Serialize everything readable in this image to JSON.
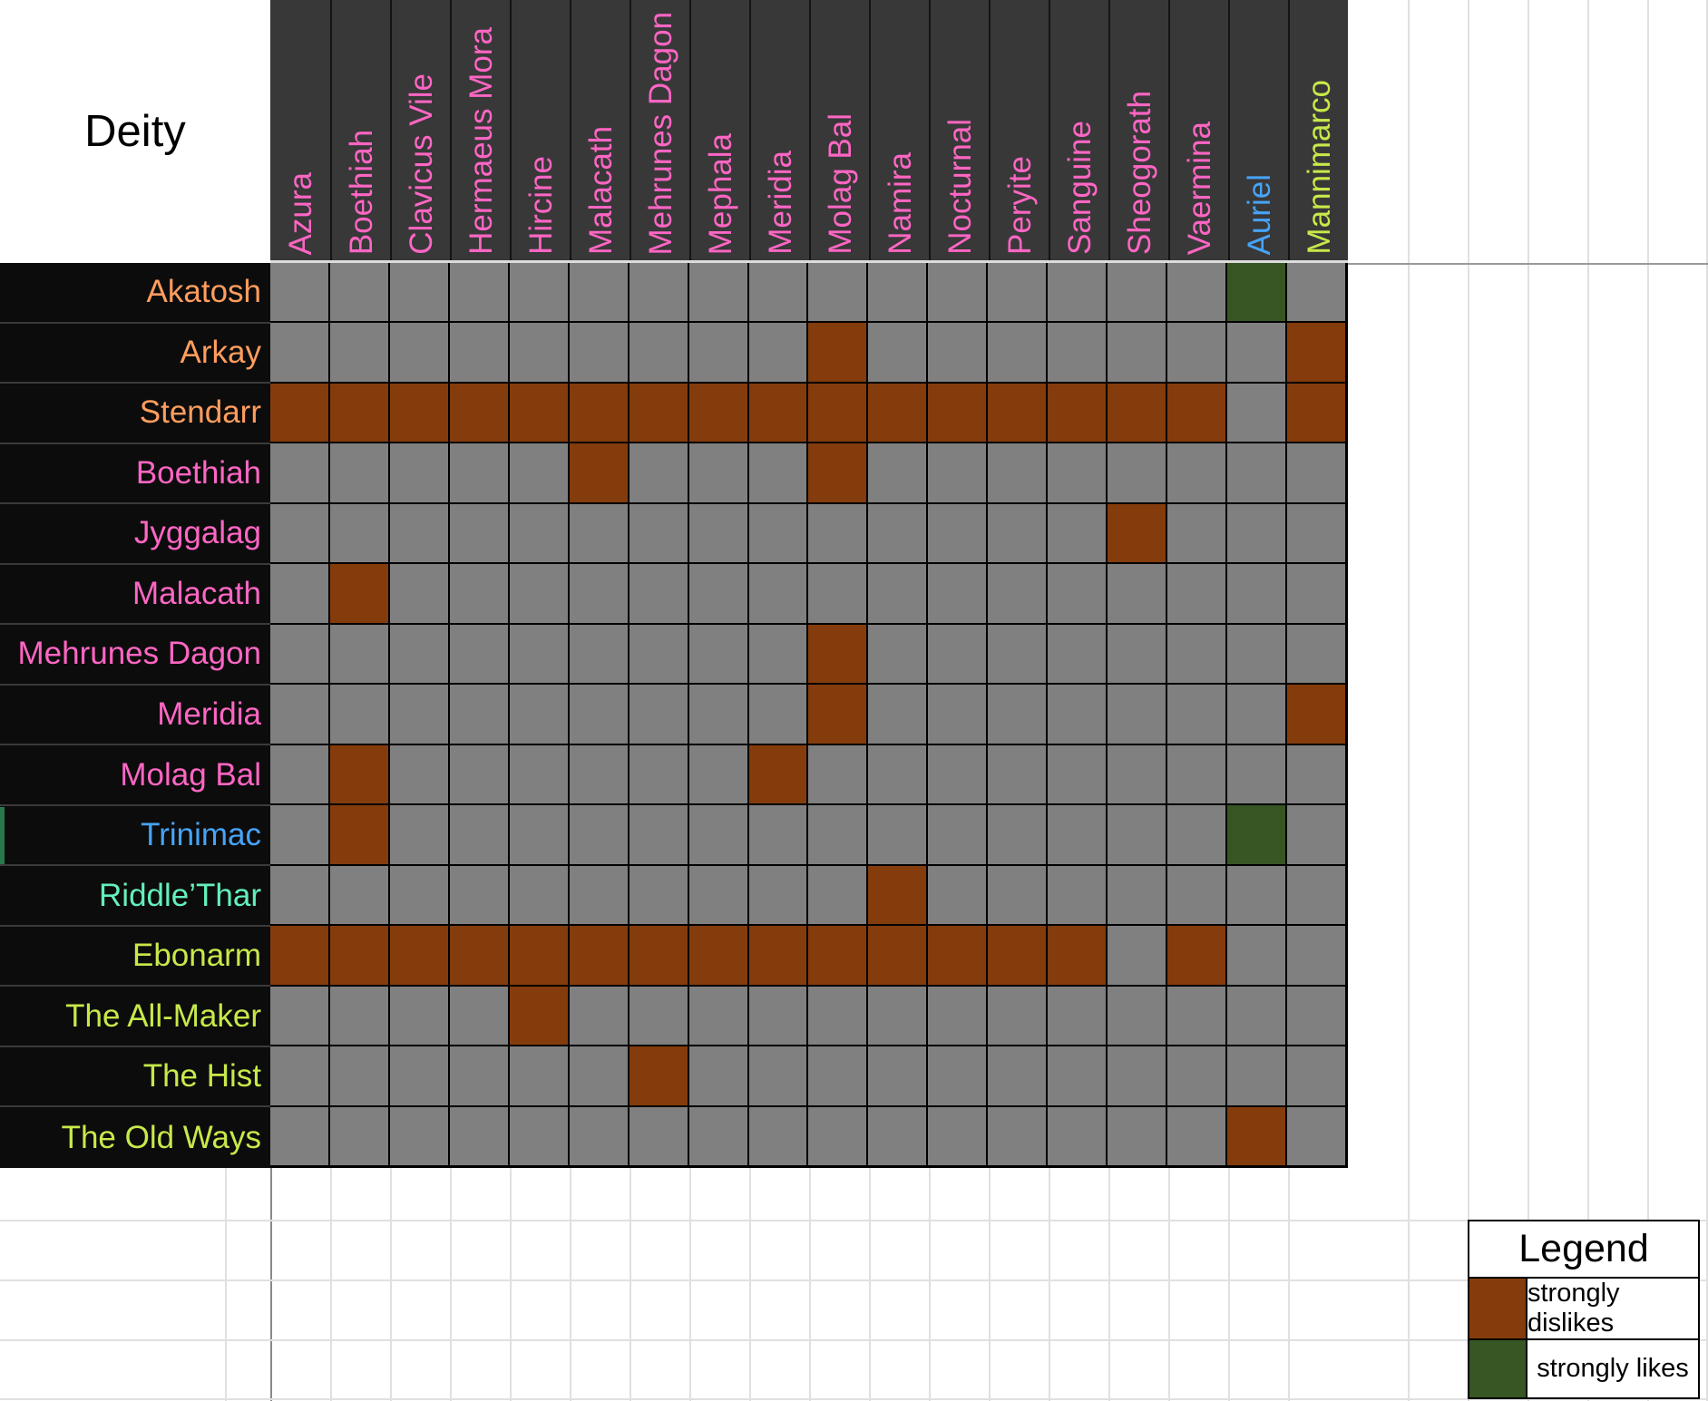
{
  "page_title": "Deity",
  "colors": {
    "cell_neutral": "#808080",
    "cell_dislike": "#843c0c",
    "cell_like": "#375623",
    "header_band_bg": "#383838",
    "row_label_bg": "#0c0c0c",
    "grid_line": "#000000",
    "sheet_gridline": "#e0e0e0",
    "text_pink": "#ff66c4",
    "text_orange": "#ff9d5f",
    "text_blue": "#47a3f8",
    "text_mint": "#63f0bb",
    "text_yellowgreen": "#c7e94a"
  },
  "chart_data": {
    "type": "heatmap",
    "title": "Deity",
    "columns": [
      {
        "label": "Azura",
        "color": "#ff66c4"
      },
      {
        "label": "Boethiah",
        "color": "#ff66c4"
      },
      {
        "label": "Clavicus Vile",
        "color": "#ff66c4"
      },
      {
        "label": "Hermaeus Mora",
        "color": "#ff66c4"
      },
      {
        "label": "Hircine",
        "color": "#ff66c4"
      },
      {
        "label": "Malacath",
        "color": "#ff66c4"
      },
      {
        "label": "Mehrunes Dagon",
        "color": "#ff66c4"
      },
      {
        "label": "Mephala",
        "color": "#ff66c4"
      },
      {
        "label": "Meridia",
        "color": "#ff66c4"
      },
      {
        "label": "Molag Bal",
        "color": "#ff66c4"
      },
      {
        "label": "Namira",
        "color": "#ff66c4"
      },
      {
        "label": "Nocturnal",
        "color": "#ff66c4"
      },
      {
        "label": "Peryite",
        "color": "#ff66c4"
      },
      {
        "label": "Sanguine",
        "color": "#ff66c4"
      },
      {
        "label": "Sheogorath",
        "color": "#ff66c4"
      },
      {
        "label": "Vaermina",
        "color": "#ff66c4"
      },
      {
        "label": "Auriel",
        "color": "#47a3f8"
      },
      {
        "label": "Mannimarco",
        "color": "#c7e94a"
      }
    ],
    "rows": [
      {
        "label": "Akatosh",
        "color": "#ff9d5f"
      },
      {
        "label": "Arkay",
        "color": "#ff9d5f"
      },
      {
        "label": "Stendarr",
        "color": "#ff9d5f"
      },
      {
        "label": "Boethiah",
        "color": "#ff66c4"
      },
      {
        "label": "Jyggalag",
        "color": "#ff66c4"
      },
      {
        "label": "Malacath",
        "color": "#ff66c4"
      },
      {
        "label": "Mehrunes Dagon",
        "color": "#ff66c4"
      },
      {
        "label": "Meridia",
        "color": "#ff66c4"
      },
      {
        "label": "Molag Bal",
        "color": "#ff66c4"
      },
      {
        "label": "Trinimac",
        "color": "#47a3f8"
      },
      {
        "label": "Riddle’Thar",
        "color": "#63f0bb"
      },
      {
        "label": "Ebonarm",
        "color": "#c7e94a"
      },
      {
        "label": "The All-Maker",
        "color": "#c7e94a"
      },
      {
        "label": "The Hist",
        "color": "#c7e94a"
      },
      {
        "label": "The Old Ways",
        "color": "#c7e94a"
      }
    ],
    "cell_states": {
      "0": "neutral",
      "1": "strongly dislikes",
      "2": "strongly likes"
    },
    "matrix": [
      [
        0,
        0,
        0,
        0,
        0,
        0,
        0,
        0,
        0,
        0,
        0,
        0,
        0,
        0,
        0,
        0,
        2,
        0
      ],
      [
        0,
        0,
        0,
        0,
        0,
        0,
        0,
        0,
        0,
        1,
        0,
        0,
        0,
        0,
        0,
        0,
        0,
        1
      ],
      [
        1,
        1,
        1,
        1,
        1,
        1,
        1,
        1,
        1,
        1,
        1,
        1,
        1,
        1,
        1,
        1,
        0,
        1
      ],
      [
        0,
        0,
        0,
        0,
        0,
        1,
        0,
        0,
        0,
        1,
        0,
        0,
        0,
        0,
        0,
        0,
        0,
        0
      ],
      [
        0,
        0,
        0,
        0,
        0,
        0,
        0,
        0,
        0,
        0,
        0,
        0,
        0,
        0,
        1,
        0,
        0,
        0
      ],
      [
        0,
        1,
        0,
        0,
        0,
        0,
        0,
        0,
        0,
        0,
        0,
        0,
        0,
        0,
        0,
        0,
        0,
        0
      ],
      [
        0,
        0,
        0,
        0,
        0,
        0,
        0,
        0,
        0,
        1,
        0,
        0,
        0,
        0,
        0,
        0,
        0,
        0
      ],
      [
        0,
        0,
        0,
        0,
        0,
        0,
        0,
        0,
        0,
        1,
        0,
        0,
        0,
        0,
        0,
        0,
        0,
        1
      ],
      [
        0,
        1,
        0,
        0,
        0,
        0,
        0,
        0,
        1,
        0,
        0,
        0,
        0,
        0,
        0,
        0,
        0,
        0
      ],
      [
        0,
        1,
        0,
        0,
        0,
        0,
        0,
        0,
        0,
        0,
        0,
        0,
        0,
        0,
        0,
        0,
        2,
        0
      ],
      [
        0,
        0,
        0,
        0,
        0,
        0,
        0,
        0,
        0,
        0,
        1,
        0,
        0,
        0,
        0,
        0,
        0,
        0
      ],
      [
        1,
        1,
        1,
        1,
        1,
        1,
        1,
        1,
        1,
        1,
        1,
        1,
        1,
        1,
        0,
        1,
        0,
        0
      ],
      [
        0,
        0,
        0,
        0,
        1,
        0,
        0,
        0,
        0,
        0,
        0,
        0,
        0,
        0,
        0,
        0,
        0,
        0
      ],
      [
        0,
        0,
        0,
        0,
        0,
        0,
        1,
        0,
        0,
        0,
        0,
        0,
        0,
        0,
        0,
        0,
        0,
        0
      ],
      [
        0,
        0,
        0,
        0,
        0,
        0,
        0,
        0,
        0,
        0,
        0,
        0,
        0,
        0,
        0,
        0,
        1,
        0
      ]
    ],
    "legend": {
      "title": "Legend",
      "entries": [
        {
          "label": "strongly dislikes",
          "color": "#843c0c"
        },
        {
          "label": "strongly likes",
          "color": "#375623"
        }
      ]
    },
    "layout_hints": {
      "legend_position": "bottom-right",
      "column_labels_rotated": true,
      "grid": "on"
    }
  }
}
